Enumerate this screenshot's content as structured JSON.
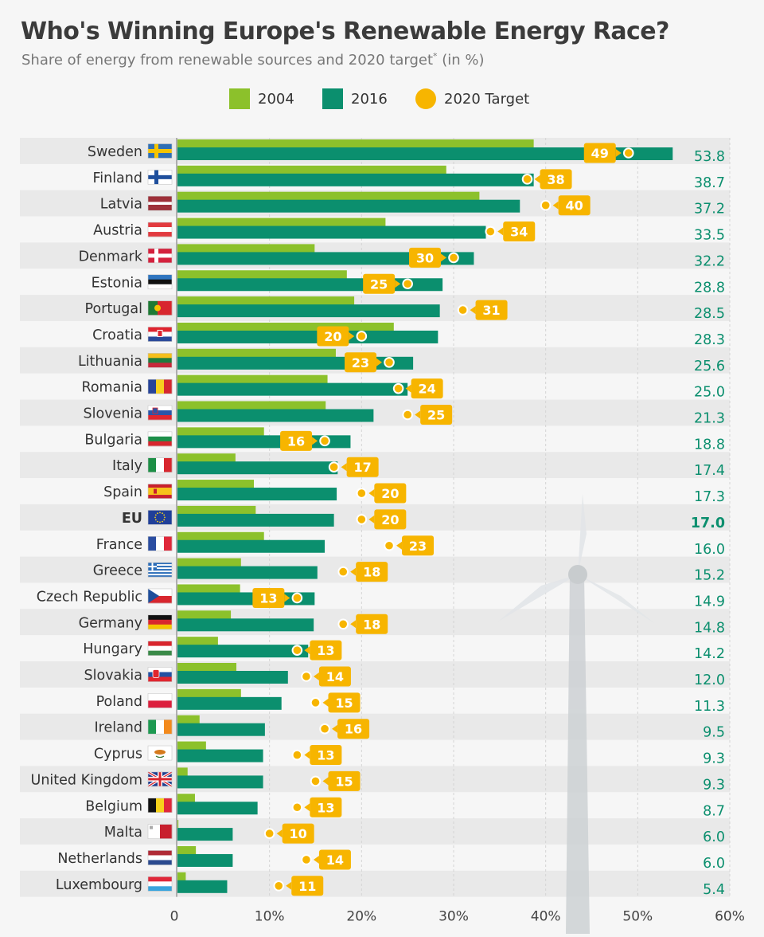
{
  "title": "Who's Winning Europe's Renewable Energy Race?",
  "subtitle_main": "Share of energy from renewable sources and 2020 target",
  "subtitle_mark": "*",
  "subtitle_unit": " (in %)",
  "legend": {
    "s2004": "2004",
    "s2016": "2016",
    "target": "2020 Target"
  },
  "colors": {
    "c2004": "#8cc12b",
    "c2016": "#0b8f6e",
    "target": "#f7b500",
    "value_text": "#0b8f6e",
    "stripe": "#e9e9e9",
    "grid": "#d4d4d4",
    "axis": "#999999"
  },
  "chart_data": {
    "type": "bar",
    "orientation": "horizontal",
    "xlim": [
      0,
      60
    ],
    "xticks": [
      "0",
      "10%",
      "20%",
      "30%",
      "40%",
      "50%",
      "60%"
    ],
    "categories": [
      "Sweden",
      "Finland",
      "Latvia",
      "Austria",
      "Denmark",
      "Estonia",
      "Portugal",
      "Croatia",
      "Lithuania",
      "Romania",
      "Slovenia",
      "Bulgaria",
      "Italy",
      "Spain",
      "EU",
      "France",
      "Greece",
      "Czech Republic",
      "Germany",
      "Hungary",
      "Slovakia",
      "Poland",
      "Ireland",
      "Cyprus",
      "United Kingdom",
      "Belgium",
      "Malta",
      "Netherlands",
      "Luxembourg"
    ],
    "series": [
      {
        "name": "2004",
        "values": [
          38.7,
          29.2,
          32.8,
          22.6,
          14.9,
          18.4,
          19.2,
          23.5,
          17.2,
          16.3,
          16.1,
          9.4,
          6.3,
          8.3,
          8.5,
          9.4,
          6.9,
          6.8,
          5.8,
          4.4,
          6.4,
          6.9,
          2.4,
          3.1,
          1.1,
          1.9,
          0.1,
          2.0,
          0.9
        ]
      },
      {
        "name": "2016",
        "values": [
          53.8,
          38.7,
          37.2,
          33.5,
          32.2,
          28.8,
          28.5,
          28.3,
          25.6,
          25.0,
          21.3,
          18.8,
          17.4,
          17.3,
          17.0,
          16.0,
          15.2,
          14.9,
          14.8,
          14.2,
          12.0,
          11.3,
          9.5,
          9.3,
          9.3,
          8.7,
          6.0,
          6.0,
          5.4
        ]
      },
      {
        "name": "2020 Target",
        "values": [
          49,
          38,
          40,
          34,
          30,
          25,
          31,
          20,
          23,
          24,
          25,
          16,
          17,
          20,
          20,
          23,
          18,
          13,
          18,
          13,
          14,
          15,
          16,
          13,
          15,
          13,
          10,
          14,
          11
        ]
      }
    ],
    "value_labels": [
      "53.8",
      "38.7",
      "37.2",
      "33.5",
      "32.2",
      "28.8",
      "28.5",
      "28.3",
      "25.6",
      "25.0",
      "21.3",
      "18.8",
      "17.4",
      "17.3",
      "17.0",
      "16.0",
      "15.2",
      "14.9",
      "14.8",
      "14.2",
      "12.0",
      "11.3",
      "9.5",
      "9.3",
      "9.3",
      "8.7",
      "6.0",
      "6.0",
      "5.4"
    ],
    "target_labels": [
      "49",
      "38",
      "40",
      "34",
      "30",
      "25",
      "31",
      "20",
      "23",
      "24",
      "25",
      "16",
      "17",
      "20",
      "20",
      "23",
      "18",
      "13",
      "18",
      "13",
      "14",
      "15",
      "16",
      "13",
      "15",
      "13",
      "10",
      "14",
      "11"
    ],
    "target_label_side": [
      "left",
      "right",
      "right",
      "right",
      "left",
      "left",
      "right",
      "left",
      "left",
      "right",
      "right",
      "left",
      "right",
      "right",
      "right",
      "right",
      "right",
      "left",
      "right",
      "right",
      "right",
      "right",
      "right",
      "right",
      "right",
      "right",
      "right",
      "right",
      "right"
    ],
    "highlight": "EU",
    "flags": [
      "flag-sweden-icon",
      "flag-finland-icon",
      "flag-latvia-icon",
      "flag-austria-icon",
      "flag-denmark-icon",
      "flag-estonia-icon",
      "flag-portugal-icon",
      "flag-croatia-icon",
      "flag-lithuania-icon",
      "flag-romania-icon",
      "flag-slovenia-icon",
      "flag-bulgaria-icon",
      "flag-italy-icon",
      "flag-spain-icon",
      "flag-eu-icon",
      "flag-france-icon",
      "flag-greece-icon",
      "flag-czech-republic-icon",
      "flag-germany-icon",
      "flag-hungary-icon",
      "flag-slovakia-icon",
      "flag-poland-icon",
      "flag-ireland-icon",
      "flag-cyprus-icon",
      "flag-united-kingdom-icon",
      "flag-belgium-icon",
      "flag-malta-icon",
      "flag-netherlands-icon",
      "flag-luxembourg-icon"
    ],
    "grid": true,
    "legend_position": "top-center"
  }
}
